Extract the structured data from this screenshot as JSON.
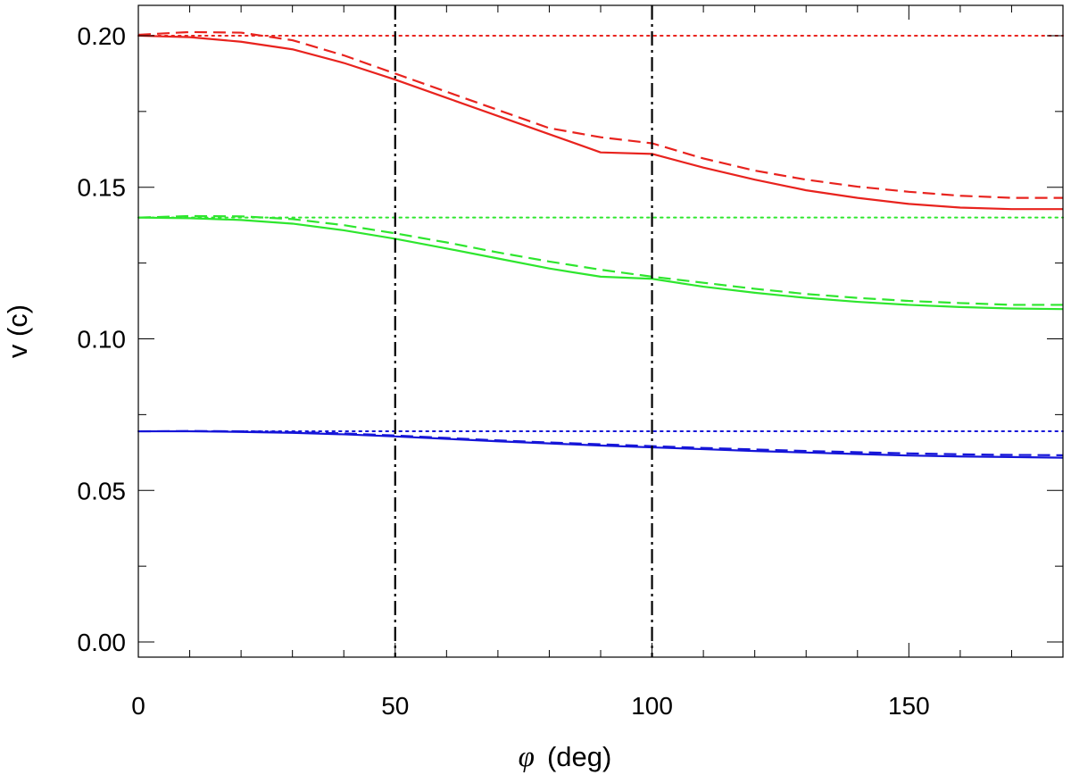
{
  "chart_data": {
    "type": "line",
    "title": "",
    "xlabel_symbol": "φ",
    "xlabel_unit": "(deg)",
    "ylabel": "v (c)",
    "xlim": [
      0,
      180
    ],
    "ylim": [
      -0.005,
      0.21
    ],
    "xticks": [
      0,
      50,
      100,
      150
    ],
    "xtick_labels": [
      "0",
      "50",
      "100",
      "150"
    ],
    "yticks": [
      0.0,
      0.05,
      0.1,
      0.15,
      0.2
    ],
    "ytick_labels": [
      "0.00",
      "0.05",
      "0.10",
      "0.15",
      "0.20"
    ],
    "grid": false,
    "vertical_lines": [
      50,
      100
    ],
    "x": [
      0,
      10,
      20,
      30,
      40,
      50,
      60,
      70,
      80,
      90,
      100,
      110,
      120,
      130,
      140,
      150,
      160,
      170,
      180
    ],
    "series": [
      {
        "color": "#e8231e",
        "style": "solid",
        "values": [
          0.2,
          0.1995,
          0.198,
          0.1955,
          0.191,
          0.1855,
          0.1795,
          0.1735,
          0.1675,
          0.1615,
          0.161,
          0.1565,
          0.1525,
          0.149,
          0.1465,
          0.1445,
          0.1433,
          0.1428,
          0.1428
        ]
      },
      {
        "color": "#e8231e",
        "style": "dashed",
        "values": [
          0.2003,
          0.2012,
          0.201,
          0.1985,
          0.1935,
          0.1875,
          0.1815,
          0.1755,
          0.1695,
          0.1665,
          0.1645,
          0.1595,
          0.1555,
          0.1525,
          0.1502,
          0.1485,
          0.1472,
          0.1465,
          0.1465
        ]
      },
      {
        "color": "#e8231e",
        "style": "dotted",
        "values": [
          0.2,
          0.2,
          0.2,
          0.2,
          0.2,
          0.2,
          0.2,
          0.2,
          0.2,
          0.2,
          0.2,
          0.2,
          0.2,
          0.2,
          0.2,
          0.2,
          0.2,
          0.2,
          0.2
        ]
      },
      {
        "color": "#2ee62e",
        "style": "solid",
        "values": [
          0.14,
          0.1398,
          0.1392,
          0.138,
          0.1358,
          0.133,
          0.1298,
          0.1265,
          0.1232,
          0.1205,
          0.1198,
          0.1172,
          0.1152,
          0.1135,
          0.1122,
          0.1112,
          0.1105,
          0.11,
          0.1098
        ]
      },
      {
        "color": "#2ee62e",
        "style": "dashed",
        "values": [
          0.14,
          0.1405,
          0.1404,
          0.1395,
          0.1375,
          0.1348,
          0.1318,
          0.1285,
          0.1255,
          0.1228,
          0.1205,
          0.1185,
          0.1165,
          0.1148,
          0.1135,
          0.1125,
          0.1118,
          0.1112,
          0.1112
        ]
      },
      {
        "color": "#2ee62e",
        "style": "dotted",
        "values": [
          0.14,
          0.14,
          0.14,
          0.14,
          0.14,
          0.14,
          0.14,
          0.14,
          0.14,
          0.14,
          0.14,
          0.14,
          0.14,
          0.14,
          0.14,
          0.14,
          0.14,
          0.14,
          0.14
        ]
      },
      {
        "color": "#1515d8",
        "style": "solid",
        "values": [
          0.0695,
          0.0695,
          0.0693,
          0.069,
          0.0685,
          0.0678,
          0.067,
          0.0662,
          0.0655,
          0.0648,
          0.0642,
          0.0636,
          0.063,
          0.0625,
          0.062,
          0.0615,
          0.0612,
          0.061,
          0.0608
        ]
      },
      {
        "color": "#1515d8",
        "style": "dashed",
        "values": [
          0.0695,
          0.0696,
          0.0695,
          0.0692,
          0.0688,
          0.0681,
          0.0673,
          0.0665,
          0.0658,
          0.0652,
          0.0646,
          0.064,
          0.0635,
          0.063,
          0.0626,
          0.0622,
          0.0619,
          0.0617,
          0.0616
        ]
      },
      {
        "color": "#1515d8",
        "style": "dotted",
        "values": [
          0.0695,
          0.0695,
          0.0695,
          0.0695,
          0.0695,
          0.0695,
          0.0695,
          0.0695,
          0.0695,
          0.0695,
          0.0695,
          0.0695,
          0.0695,
          0.0695,
          0.0695,
          0.0695,
          0.0695,
          0.0695,
          0.0695
        ]
      }
    ]
  }
}
